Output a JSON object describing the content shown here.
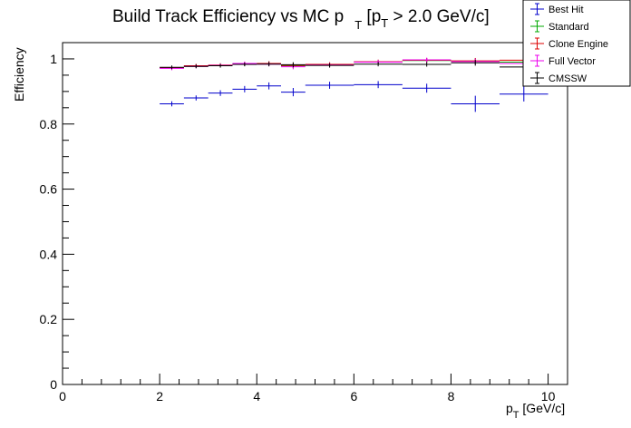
{
  "chart_data": {
    "type": "scatter",
    "title": "Build Track Efficiency vs MC p",
    "title_sub": "T",
    "title_rest": " [p",
    "title_rest_sub": "T",
    "title_tail": " > 2.0 GeV/c]",
    "xlabel": "p",
    "xlabel_sub": "T",
    "xlabel_tail": " [GeV/c]",
    "ylabel": "Efficiency",
    "xlim": [
      0,
      10.4
    ],
    "ylim": [
      0,
      1.05
    ],
    "x_ticks": [
      0,
      2,
      4,
      6,
      8,
      10
    ],
    "y_ticks": [
      0,
      0.2,
      0.4,
      0.6,
      0.8,
      1
    ],
    "y_tick_labels": [
      "0",
      "0.2",
      "0.4",
      "0.6",
      "0.8",
      "1"
    ],
    "legend_position": "top-right",
    "grid": false,
    "series": [
      {
        "name": "Best Hit",
        "color": "#0000cc",
        "points": [
          {
            "xlo": 2.0,
            "xhi": 2.5,
            "y": 0.862,
            "err": 0.005
          },
          {
            "xlo": 2.5,
            "xhi": 3.0,
            "y": 0.88,
            "err": 0.005
          },
          {
            "xlo": 3.0,
            "xhi": 3.5,
            "y": 0.895,
            "err": 0.006
          },
          {
            "xlo": 3.5,
            "xhi": 4.0,
            "y": 0.907,
            "err": 0.007
          },
          {
            "xlo": 4.0,
            "xhi": 4.5,
            "y": 0.917,
            "err": 0.008
          },
          {
            "xlo": 4.5,
            "xhi": 5.0,
            "y": 0.898,
            "err": 0.01
          },
          {
            "xlo": 5.0,
            "xhi": 6.0,
            "y": 0.919,
            "err": 0.008
          },
          {
            "xlo": 6.0,
            "xhi": 7.0,
            "y": 0.921,
            "err": 0.008
          },
          {
            "xlo": 7.0,
            "xhi": 8.0,
            "y": 0.91,
            "err": 0.011
          },
          {
            "xlo": 8.0,
            "xhi": 9.0,
            "y": 0.862,
            "err": 0.022
          },
          {
            "xlo": 9.0,
            "xhi": 10.0,
            "y": 0.892,
            "err": 0.02
          }
        ]
      },
      {
        "name": "Standard",
        "color": "#00aa00",
        "points": [
          {
            "xlo": 2.0,
            "xhi": 2.5,
            "y": 0.972,
            "err": 0.003
          },
          {
            "xlo": 2.5,
            "xhi": 3.0,
            "y": 0.978,
            "err": 0.003
          },
          {
            "xlo": 3.0,
            "xhi": 3.5,
            "y": 0.98,
            "err": 0.003
          },
          {
            "xlo": 3.5,
            "xhi": 4.0,
            "y": 0.984,
            "err": 0.003
          },
          {
            "xlo": 4.0,
            "xhi": 4.5,
            "y": 0.986,
            "err": 0.004
          },
          {
            "xlo": 4.5,
            "xhi": 5.0,
            "y": 0.979,
            "err": 0.005
          },
          {
            "xlo": 5.0,
            "xhi": 6.0,
            "y": 0.982,
            "err": 0.004
          },
          {
            "xlo": 6.0,
            "xhi": 7.0,
            "y": 0.99,
            "err": 0.004
          },
          {
            "xlo": 7.0,
            "xhi": 8.0,
            "y": 0.995,
            "err": 0.004
          },
          {
            "xlo": 8.0,
            "xhi": 9.0,
            "y": 0.993,
            "err": 0.006
          },
          {
            "xlo": 9.0,
            "xhi": 10.0,
            "y": 0.99,
            "err": 0.007
          }
        ]
      },
      {
        "name": "Clone Engine",
        "color": "#dd0000",
        "points": [
          {
            "xlo": 2.0,
            "xhi": 2.5,
            "y": 0.973,
            "err": 0.003
          },
          {
            "xlo": 2.5,
            "xhi": 3.0,
            "y": 0.979,
            "err": 0.003
          },
          {
            "xlo": 3.0,
            "xhi": 3.5,
            "y": 0.981,
            "err": 0.003
          },
          {
            "xlo": 3.5,
            "xhi": 4.0,
            "y": 0.985,
            "err": 0.003
          },
          {
            "xlo": 4.0,
            "xhi": 4.5,
            "y": 0.986,
            "err": 0.004
          },
          {
            "xlo": 4.5,
            "xhi": 5.0,
            "y": 0.98,
            "err": 0.005
          },
          {
            "xlo": 5.0,
            "xhi": 6.0,
            "y": 0.983,
            "err": 0.004
          },
          {
            "xlo": 6.0,
            "xhi": 7.0,
            "y": 0.991,
            "err": 0.004
          },
          {
            "xlo": 7.0,
            "xhi": 8.0,
            "y": 0.996,
            "err": 0.004
          },
          {
            "xlo": 8.0,
            "xhi": 9.0,
            "y": 0.994,
            "err": 0.006
          },
          {
            "xlo": 9.0,
            "xhi": 10.0,
            "y": 0.996,
            "err": 0.007
          }
        ]
      },
      {
        "name": "Full Vector",
        "color": "#ee00ee",
        "points": [
          {
            "xlo": 2.0,
            "xhi": 2.5,
            "y": 0.971,
            "err": 0.003
          },
          {
            "xlo": 2.5,
            "xhi": 3.0,
            "y": 0.977,
            "err": 0.003
          },
          {
            "xlo": 3.0,
            "xhi": 3.5,
            "y": 0.98,
            "err": 0.003
          },
          {
            "xlo": 3.5,
            "xhi": 4.0,
            "y": 0.986,
            "err": 0.003
          },
          {
            "xlo": 4.0,
            "xhi": 4.5,
            "y": 0.984,
            "err": 0.004
          },
          {
            "xlo": 4.5,
            "xhi": 5.0,
            "y": 0.976,
            "err": 0.005
          },
          {
            "xlo": 5.0,
            "xhi": 6.0,
            "y": 0.981,
            "err": 0.004
          },
          {
            "xlo": 6.0,
            "xhi": 7.0,
            "y": 0.99,
            "err": 0.004
          },
          {
            "xlo": 7.0,
            "xhi": 8.0,
            "y": 0.997,
            "err": 0.004
          },
          {
            "xlo": 8.0,
            "xhi": 9.0,
            "y": 0.992,
            "err": 0.006
          },
          {
            "xlo": 9.0,
            "xhi": 10.0,
            "y": 0.986,
            "err": 0.007
          }
        ]
      },
      {
        "name": "CMSSW",
        "color": "#000000",
        "points": [
          {
            "xlo": 2.0,
            "xhi": 2.5,
            "y": 0.974,
            "err": 0.003
          },
          {
            "xlo": 2.5,
            "xhi": 3.0,
            "y": 0.977,
            "err": 0.003
          },
          {
            "xlo": 3.0,
            "xhi": 3.5,
            "y": 0.979,
            "err": 0.003
          },
          {
            "xlo": 3.5,
            "xhi": 4.0,
            "y": 0.983,
            "err": 0.003
          },
          {
            "xlo": 4.0,
            "xhi": 4.5,
            "y": 0.984,
            "err": 0.004
          },
          {
            "xlo": 4.5,
            "xhi": 5.0,
            "y": 0.982,
            "err": 0.005
          },
          {
            "xlo": 5.0,
            "xhi": 6.0,
            "y": 0.98,
            "err": 0.004
          },
          {
            "xlo": 6.0,
            "xhi": 7.0,
            "y": 0.984,
            "err": 0.004
          },
          {
            "xlo": 7.0,
            "xhi": 8.0,
            "y": 0.983,
            "err": 0.004
          },
          {
            "xlo": 8.0,
            "xhi": 9.0,
            "y": 0.988,
            "err": 0.006
          },
          {
            "xlo": 9.0,
            "xhi": 10.0,
            "y": 0.975,
            "err": 0.007
          }
        ]
      }
    ]
  }
}
